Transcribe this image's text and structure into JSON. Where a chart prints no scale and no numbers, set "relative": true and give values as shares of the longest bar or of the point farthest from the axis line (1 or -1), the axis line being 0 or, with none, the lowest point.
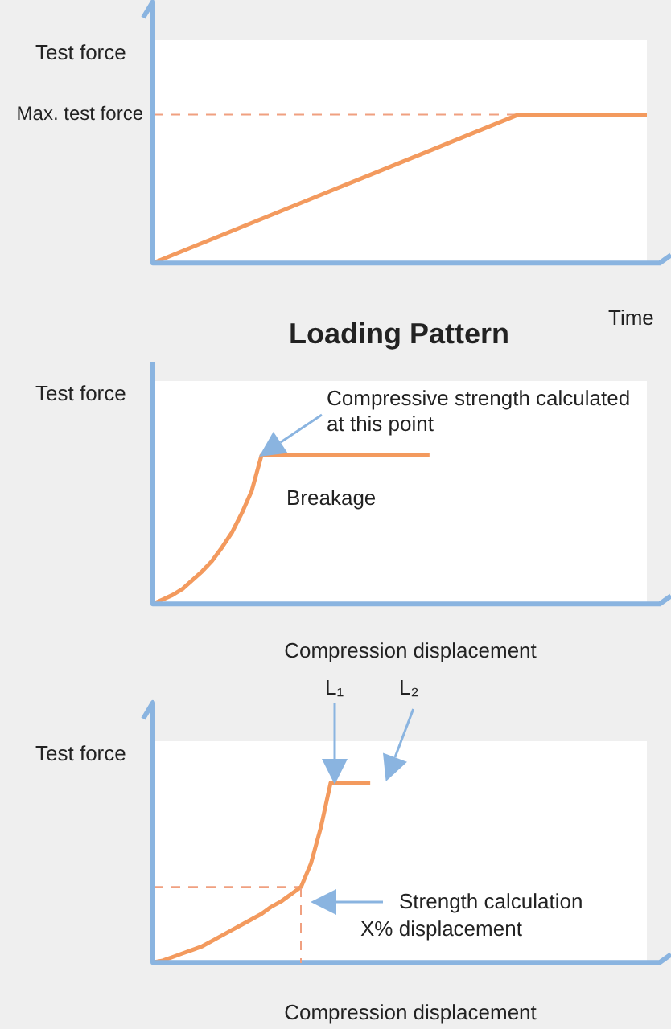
{
  "chart_data": [
    {
      "type": "line",
      "title": "Loading Pattern",
      "xlabel": "Time",
      "ylabel": "Test force",
      "relative": true,
      "categories": [
        null,
        null,
        null,
        null,
        null,
        null,
        null,
        null,
        null,
        null,
        null,
        null,
        null,
        null,
        null,
        null,
        null,
        null,
        null,
        null,
        null,
        null,
        null,
        null,
        null,
        null,
        null,
        null
      ],
      "series": [
        {
          "color": "#f39a5e",
          "values": [
            0,
            0.05,
            0.1,
            0.15,
            0.2,
            0.25,
            0.3,
            0.35,
            0.4,
            0.45,
            0.5,
            0.55,
            0.6,
            0.65,
            0.7,
            0.75,
            0.8,
            0.85,
            0.9,
            0.95,
            1,
            1,
            1,
            1,
            1,
            1,
            1,
            1
          ]
        }
      ],
      "ref_lines": [
        {
          "axis": "y",
          "value": 1,
          "label": "Max. test force",
          "color": "#f0a080",
          "line_style": "dashed"
        }
      ]
    },
    {
      "type": "line",
      "xlabel": "Compression displacement",
      "ylabel": "Test force",
      "relative": true,
      "categories": [
        null,
        null,
        null,
        null,
        null,
        null,
        null,
        null,
        null,
        null,
        null,
        null,
        null,
        null,
        null,
        null,
        null,
        null,
        null,
        null,
        null,
        null,
        null,
        null,
        null,
        null,
        null,
        null,
        null,
        null,
        null,
        null,
        null,
        null,
        null,
        null,
        null,
        null,
        null,
        null,
        null,
        null,
        null,
        null,
        null,
        null,
        null,
        null,
        null,
        null,
        null
      ],
      "series": [
        {
          "color": "#f39a5e",
          "values": [
            0,
            0.03,
            0.06,
            0.1,
            0.16,
            0.22,
            0.29,
            0.38,
            0.48,
            0.61,
            0.76,
            1,
            1,
            1,
            1,
            1,
            1,
            1,
            1,
            1,
            1,
            1,
            1,
            1,
            1,
            1,
            1,
            1,
            1,
            null,
            null,
            null,
            null,
            null,
            null,
            null,
            null,
            null,
            null,
            null,
            null,
            null,
            null,
            null,
            null,
            null,
            null,
            null,
            null,
            null,
            null
          ]
        }
      ],
      "annotations": [
        "Compressive strength calculated at this point",
        "Breakage"
      ]
    },
    {
      "type": "line",
      "xlabel": "Compression displacement",
      "ylabel": "Test force",
      "relative": true,
      "categories": [
        null,
        null,
        null,
        null,
        null,
        null,
        null,
        null,
        null,
        null,
        null,
        null,
        null,
        null,
        null,
        null,
        null,
        null,
        null,
        null,
        null,
        null,
        null,
        null,
        null,
        null,
        null,
        null,
        null,
        null,
        null,
        null,
        null,
        null,
        null,
        null,
        null,
        null,
        null,
        null,
        null,
        null,
        null,
        null,
        null,
        null,
        null,
        null,
        null,
        null,
        null
      ],
      "series": [
        {
          "color": "#f39a5e",
          "values": [
            0,
            0.01,
            0.03,
            0.05,
            0.07,
            0.09,
            0.12,
            0.15,
            0.18,
            0.21,
            0.24,
            0.27,
            0.31,
            0.34,
            0.38,
            0.42,
            0.55,
            0.75,
            1,
            1,
            1,
            1,
            1,
            null,
            null,
            null,
            null,
            null,
            null,
            null,
            null,
            null,
            null,
            null,
            null,
            null,
            null,
            null,
            null,
            null,
            null,
            null,
            null,
            null,
            null,
            null,
            null,
            null,
            null,
            null,
            null
          ]
        }
      ],
      "ref_lines": [
        {
          "axis": "y",
          "value": 0.42,
          "color": "#f0a080",
          "line_style": "dashed"
        }
      ],
      "annotations": [
        "L₁",
        "L₂",
        "Strength calculation",
        "X% displacement"
      ]
    }
  ]
}
